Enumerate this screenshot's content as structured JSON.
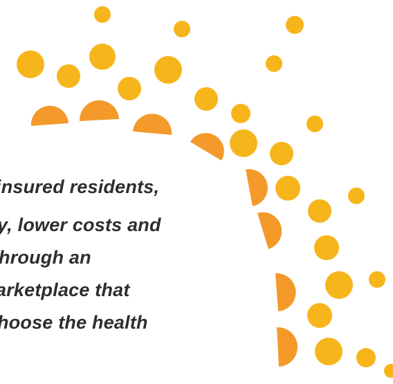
{
  "text": {
    "lines": [
      "insured residents,",
      "y, lower costs and",
      "hrough an",
      "arketplace that",
      "hoose the health"
    ]
  }
}
